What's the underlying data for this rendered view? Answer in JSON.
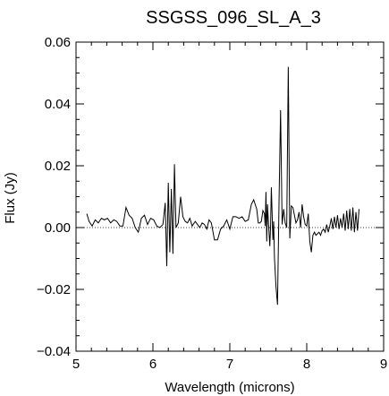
{
  "chart_data": {
    "type": "line",
    "title": "SSGSS_096_SL_A_3",
    "xlabel": "Wavelength (microns)",
    "ylabel": "Flux (Jy)",
    "xlim": [
      5,
      9
    ],
    "ylim": [
      -0.04,
      0.06
    ],
    "xticks": [
      5,
      6,
      7,
      8,
      9
    ],
    "xtick_labels": [
      "5",
      "6",
      "7",
      "8",
      "9"
    ],
    "yticks": [
      -0.04,
      -0.02,
      0.0,
      0.02,
      0.04,
      0.06
    ],
    "ytick_labels": [
      "−0.04",
      "−0.02",
      "0.00",
      "0.02",
      "0.04",
      "0.06"
    ],
    "grid": false,
    "reference_line": {
      "y": 0.0,
      "style": "dotted"
    },
    "series": [
      {
        "x": [
          5.14,
          5.17,
          5.21,
          5.25,
          5.29,
          5.33,
          5.37,
          5.41,
          5.45,
          5.49,
          5.53,
          5.57,
          5.61,
          5.65,
          5.69,
          5.73,
          5.77,
          5.81,
          5.85,
          5.89,
          5.93,
          5.97,
          6.01,
          6.05,
          6.09,
          6.13,
          6.16,
          6.18,
          6.2,
          6.22,
          6.24,
          6.26,
          6.28,
          6.3,
          6.33,
          6.36,
          6.39,
          6.42,
          6.45,
          6.48,
          6.51,
          6.55,
          6.58,
          6.61,
          6.64,
          6.67,
          6.7,
          6.73,
          6.76,
          6.8,
          6.84,
          6.88,
          6.92,
          6.96,
          7.0,
          7.04,
          7.08,
          7.12,
          7.16,
          7.2,
          7.24,
          7.28,
          7.31,
          7.33,
          7.35,
          7.37,
          7.39,
          7.41,
          7.43,
          7.45,
          7.46,
          7.47,
          7.48,
          7.49,
          7.5,
          7.52,
          7.53,
          7.54,
          7.56,
          7.57,
          7.58,
          7.6,
          7.62,
          7.64,
          7.66,
          7.68,
          7.7,
          7.72,
          7.74,
          7.76,
          7.78,
          7.8,
          7.82,
          7.84,
          7.86,
          7.88,
          7.9,
          7.92,
          7.94,
          7.96,
          7.98,
          8.0,
          8.02,
          8.04,
          8.06,
          8.08,
          8.1,
          8.12,
          8.14,
          8.16,
          8.18,
          8.2,
          8.22,
          8.24,
          8.26,
          8.28,
          8.3,
          8.32,
          8.34,
          8.36,
          8.38,
          8.4,
          8.42,
          8.44,
          8.46,
          8.48,
          8.5,
          8.52,
          8.54,
          8.56,
          8.58,
          8.6,
          8.62,
          8.64,
          8.66,
          8.68
        ],
        "y": [
          0.0045,
          0.002,
          0.0005,
          0.0025,
          0.0015,
          0.003,
          0.0025,
          0.003,
          0.0015,
          0.0025,
          0.002,
          0.0005,
          0.0005,
          0.0065,
          0.004,
          0.003,
          0.0,
          -0.0015,
          0.003,
          0.004,
          0.001,
          0.003,
          0.0025,
          0.0005,
          0.0,
          0.001,
          0.008,
          -0.0125,
          0.0145,
          -0.008,
          0.0125,
          -0.0085,
          0.0205,
          0.0,
          0.0015,
          0.01,
          0.0035,
          0.002,
          0.0015,
          0.003,
          0.0005,
          0.002,
          0.001,
          0.0,
          0.0015,
          0.001,
          -0.0005,
          0.0025,
          0.0015,
          -0.004,
          -0.004,
          -0.0005,
          0.0005,
          0.0025,
          -0.0005,
          0.0035,
          0.0035,
          0.003,
          0.0035,
          0.002,
          0.0025,
          0.0075,
          0.009,
          0.0075,
          0.006,
          0.0015,
          0.0015,
          0.002,
          0.0055,
          0.0045,
          0.0005,
          0.0115,
          -0.0045,
          0.0075,
          0.0025,
          -0.006,
          0.0005,
          0.013,
          -0.004,
          0.002,
          -0.0095,
          -0.019,
          -0.025,
          0.0085,
          0.038,
          0.001,
          0.006,
          0.0015,
          0.0,
          0.052,
          -0.0035,
          0.007,
          0.0065,
          0.004,
          0.0015,
          0.0025,
          0.005,
          0.0,
          0.0075,
          0.0035,
          0.001,
          0.0005,
          0.0045,
          -0.0045,
          -0.008,
          -0.0025,
          -0.0015,
          -0.0025,
          -0.002,
          -0.0015,
          -0.0025,
          -0.001,
          -0.0005,
          -0.0015,
          0.001,
          -0.0015,
          0.0005,
          0.003,
          -0.0005,
          0.0035,
          0.0,
          0.004,
          -0.0005,
          0.003,
          0.0,
          0.0045,
          -0.001,
          0.0055,
          -0.0005,
          0.006,
          -0.001,
          0.0065,
          -0.0015,
          0.005,
          -0.001,
          0.006
        ]
      }
    ]
  }
}
